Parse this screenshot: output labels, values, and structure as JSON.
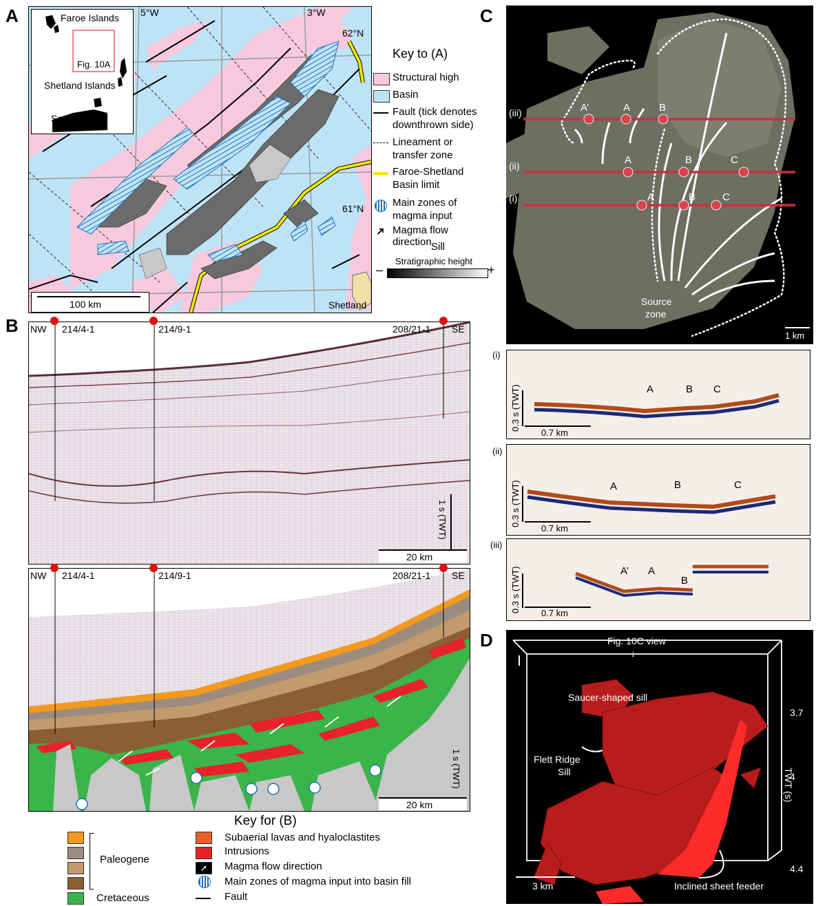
{
  "panels": {
    "a": "A",
    "b": "B",
    "c": "C",
    "d": "D"
  },
  "map": {
    "lon_5w": "5°W",
    "lon_3w": "3°W",
    "lat_62n": "62°N",
    "lat_61n": "61°N",
    "shetland": "Shetland",
    "scale": "100 km",
    "inset": {
      "faroe": "Faroe Islands",
      "shetland_islands": "Shetland Islands",
      "scotland": "Scotland",
      "fig": "Fig. 10A"
    }
  },
  "key_a": {
    "title": "Key to (A)",
    "items": [
      {
        "label": "Structural high",
        "color": "#f6c9dc"
      },
      {
        "label": "Basin",
        "color": "#bfe3f6"
      },
      {
        "label": "Fault (tick denotes",
        "label2": "downthrown side)"
      },
      {
        "label": "Lineament or",
        "label2": "transfer zone"
      },
      {
        "label": "Faroe-Shetland",
        "label2": "Basin limit",
        "color": "#f3e600"
      },
      {
        "label": "Main zones of",
        "label2": "magma input"
      },
      {
        "label": "Magma flow direction"
      }
    ],
    "sill": "Sill",
    "strat": "Stratigraphic height",
    "minus": "–",
    "plus": "+"
  },
  "seismic": {
    "nw": "NW",
    "se": "SE",
    "wells": [
      "214/4-1",
      "214/9-1",
      "208/21-1"
    ],
    "twt": "1 s (TWT)",
    "scale": "20 km"
  },
  "key_b": {
    "title": "Key for (B)",
    "paleogene": "Paleogene",
    "cretaceous": "Cretaceous",
    "colors": {
      "orange": "#f39a1e",
      "grey_brown": "#9c8c80",
      "tan": "#c29a6c",
      "brown": "#8b5e34",
      "green": "#3ab54a",
      "lava": "#e8602a",
      "intrusion": "#e8222a"
    },
    "items": [
      "Subaerial lavas and hyaloclastites",
      "Intrusions",
      "Magma flow direction",
      "Main zones of magma input into basin fill",
      "Fault"
    ]
  },
  "panel_c": {
    "lines": [
      "(iii)",
      "(ii)",
      "(i)"
    ],
    "labels_iii": [
      "A’",
      "A",
      "B"
    ],
    "labels_ii": [
      "A",
      "B",
      "C"
    ],
    "labels_i": [
      "A",
      "B",
      "C"
    ],
    "source": "Source",
    "zone": "zone",
    "scale": "1 km"
  },
  "sections": [
    {
      "id": "(i)",
      "labels": [
        "A",
        "B",
        "C"
      ],
      "twt": "0.3 s (TWT)",
      "scale": "0.7 km"
    },
    {
      "id": "(ii)",
      "labels": [
        "A",
        "B",
        "C"
      ],
      "twt": "0.3 s (TWT)",
      "scale": "0.7 km"
    },
    {
      "id": "(iii)",
      "labels": [
        "A’",
        "A",
        "B"
      ],
      "twt": "0.3 s (TWT)",
      "scale": "0.7 km"
    }
  ],
  "panel_d": {
    "view": "Fig. 10C view",
    "saucer": "Saucer-shaped sill",
    "flett1": "Flett Ridge",
    "flett2": "Sill",
    "feeder": "Inclined sheet feeder",
    "twt_axis": "TWT (s)",
    "ticks": [
      "3.7",
      "4",
      "4.4"
    ],
    "scale": "3 km"
  }
}
